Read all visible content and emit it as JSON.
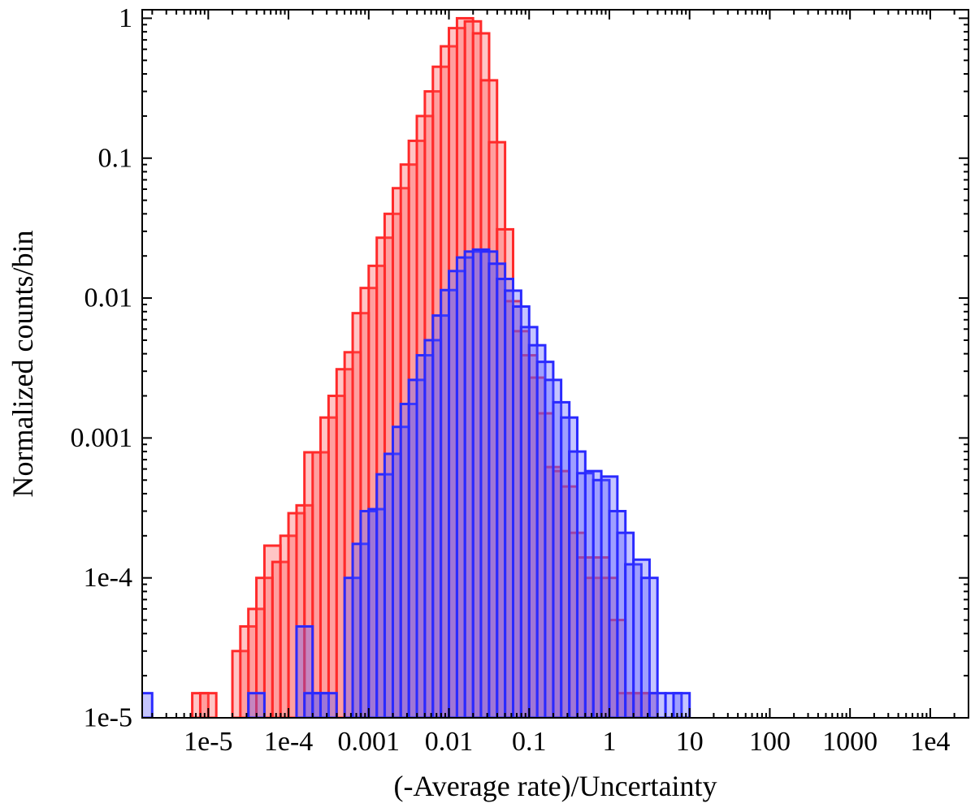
{
  "chart_data": {
    "type": "histogram",
    "xlabel": "(-Average rate)/Uncertainty",
    "ylabel": "Normalized counts/bin",
    "xscale": "log",
    "yscale": "log",
    "xlim": [
      1.5e-06,
      30000
    ],
    "ylim": [
      1e-05,
      1.15
    ],
    "x_ticks": [
      {
        "value": 1e-05,
        "label": "1e-5"
      },
      {
        "value": 0.0001,
        "label": "1e-4"
      },
      {
        "value": 0.001,
        "label": "0.001"
      },
      {
        "value": 0.01,
        "label": "0.01"
      },
      {
        "value": 0.1,
        "label": "0.1"
      },
      {
        "value": 1,
        "label": "1"
      },
      {
        "value": 10,
        "label": "10"
      },
      {
        "value": 100,
        "label": "100"
      },
      {
        "value": 1000,
        "label": "1000"
      },
      {
        "value": 10000,
        "label": "1e4"
      }
    ],
    "y_ticks": [
      {
        "value": 1e-05,
        "label": "1e-5"
      },
      {
        "value": 0.0001,
        "label": "1e-4"
      },
      {
        "value": 0.001,
        "label": "0.001"
      },
      {
        "value": 0.01,
        "label": "0.01"
      },
      {
        "value": 0.1,
        "label": "0.1"
      },
      {
        "value": 1,
        "label": "1"
      }
    ],
    "bins_per_decade": 5,
    "series": [
      {
        "color": "#ff2a2a",
        "fill": "rgba(255,90,90,0.35)",
        "bins": [
          [
            6.31e-06,
            1.5e-05
          ],
          [
            7.94e-06,
            1.5e-05
          ],
          [
            2e-05,
            3e-05
          ],
          [
            2.51e-05,
            4.5e-05
          ],
          [
            3.16e-05,
            6e-05
          ],
          [
            3.98e-05,
            0.0001
          ],
          [
            5.01e-05,
            0.00017
          ],
          [
            6.31e-05,
            0.00013
          ],
          [
            7.94e-05,
            0.0002
          ],
          [
            0.0001,
            0.00029
          ],
          [
            0.000126,
            0.00033
          ],
          [
            0.000158,
            0.00079
          ],
          [
            0.0002,
            0.00079
          ],
          [
            0.000251,
            0.0014
          ],
          [
            0.000316,
            0.002
          ],
          [
            0.000398,
            0.0031
          ],
          [
            0.000501,
            0.0041
          ],
          [
            0.000631,
            0.0078
          ],
          [
            0.000794,
            0.0118
          ],
          [
            0.001,
            0.017
          ],
          [
            0.00126,
            0.027
          ],
          [
            0.00158,
            0.04
          ],
          [
            0.002,
            0.061
          ],
          [
            0.00251,
            0.09
          ],
          [
            0.00316,
            0.133
          ],
          [
            0.00398,
            0.2
          ],
          [
            0.00501,
            0.3
          ],
          [
            0.00631,
            0.45
          ],
          [
            0.00794,
            0.63
          ],
          [
            0.01,
            0.85
          ],
          [
            0.0126,
            1.0
          ],
          [
            0.0158,
            0.95
          ],
          [
            0.02,
            0.78
          ],
          [
            0.0251,
            0.36
          ],
          [
            0.0316,
            0.13
          ],
          [
            0.0398,
            0.031
          ],
          [
            0.0501,
            0.0095
          ],
          [
            0.0631,
            0.0058
          ],
          [
            0.0794,
            0.0039
          ],
          [
            0.1,
            0.0027
          ],
          [
            0.126,
            0.0015
          ],
          [
            0.158,
            0.00062
          ],
          [
            0.2,
            0.00058
          ],
          [
            0.251,
            0.00045
          ],
          [
            0.316,
            0.00021
          ],
          [
            0.398,
            0.00014
          ],
          [
            0.501,
            0.0001
          ],
          [
            0.631,
            0.00014
          ],
          [
            0.794,
            0.0001
          ],
          [
            1.0,
            5e-05
          ],
          [
            1.26,
            1.5e-05
          ],
          [
            1.58,
            1.5e-05
          ],
          [
            2.0,
            1.5e-05
          ],
          [
            2.51,
            1.5e-05
          ]
        ]
      },
      {
        "color": "#2a2aff",
        "fill": "rgba(90,90,255,0.35)",
        "bins": [
          [
            1.26e-06,
            1.5e-05
          ],
          [
            3.16e-05,
            1.5e-05
          ],
          [
            0.000126,
            4.5e-05
          ],
          [
            0.000158,
            1.5e-05
          ],
          [
            0.0002,
            1.5e-05
          ],
          [
            0.000251,
            1.5e-05
          ],
          [
            0.000501,
            0.0001
          ],
          [
            0.000631,
            0.000175
          ],
          [
            0.000794,
            0.0003
          ],
          [
            0.001,
            0.00031
          ],
          [
            0.00126,
            0.00055
          ],
          [
            0.00158,
            0.00077
          ],
          [
            0.002,
            0.0012
          ],
          [
            0.00251,
            0.00175
          ],
          [
            0.00316,
            0.0026
          ],
          [
            0.00398,
            0.0039
          ],
          [
            0.00501,
            0.005
          ],
          [
            0.00631,
            0.0075
          ],
          [
            0.00794,
            0.0114
          ],
          [
            0.01,
            0.0156
          ],
          [
            0.0126,
            0.0195
          ],
          [
            0.0158,
            0.0215
          ],
          [
            0.02,
            0.0222
          ],
          [
            0.0251,
            0.0215
          ],
          [
            0.0316,
            0.0176
          ],
          [
            0.0398,
            0.0137
          ],
          [
            0.0501,
            0.0113
          ],
          [
            0.0631,
            0.0087
          ],
          [
            0.0794,
            0.0062
          ],
          [
            0.1,
            0.0046
          ],
          [
            0.126,
            0.0035
          ],
          [
            0.158,
            0.0026
          ],
          [
            0.2,
            0.0018
          ],
          [
            0.251,
            0.0014
          ],
          [
            0.316,
            0.0008
          ],
          [
            0.398,
            0.00056
          ],
          [
            0.501,
            0.00058
          ],
          [
            0.631,
            0.0005
          ],
          [
            0.794,
            0.00053
          ],
          [
            1.0,
            0.0003
          ],
          [
            1.26,
            0.00021
          ],
          [
            1.58,
            0.000125
          ],
          [
            2.0,
            0.000135
          ],
          [
            2.51,
            0.0001
          ],
          [
            3.16,
            1.5e-05
          ],
          [
            5.01,
            1.5e-05
          ],
          [
            6.31,
            1.5e-05
          ]
        ]
      }
    ]
  }
}
